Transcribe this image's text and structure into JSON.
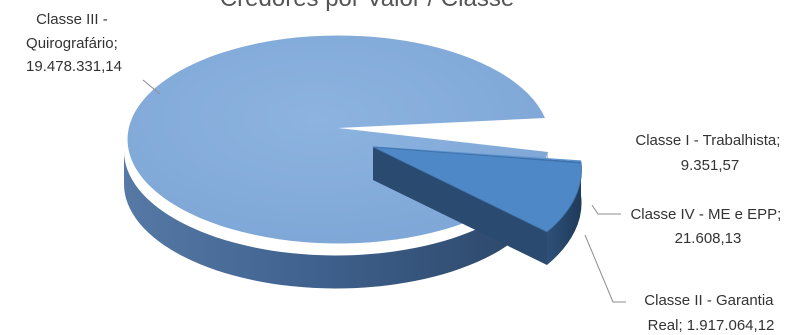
{
  "chart_data": {
    "type": "pie",
    "title": "Credores por Valor / Classe",
    "style": "3d-exploded",
    "slices": [
      {
        "category": "Classe I - Trabalhista",
        "value": 9351.57,
        "value_label": "9.351,57",
        "color": "#4f81bd"
      },
      {
        "category": "Classe IV - ME e EPP",
        "value": 21608.13,
        "value_label": "21.608,13",
        "color": "#4f81bd"
      },
      {
        "category": "Classe II - Garantia Real",
        "value": 1917064.12,
        "value_label": "1.917.064,12",
        "color": "#4a86c8"
      },
      {
        "category": "Classe III - Quirografário",
        "value": 19478331.14,
        "value_label": "19.478.331,14",
        "color": "#84abd8"
      }
    ],
    "labels": {
      "class3": {
        "line1": "Classe III -",
        "line2": "Quirografário;",
        "line3": "19.478.331,14"
      },
      "class1": {
        "line1": "Classe I - Trabalhista;",
        "line2": "9.351,57"
      },
      "class4": {
        "line1": "Classe IV - ME e EPP;",
        "line2": "21.608,13"
      },
      "class2": {
        "line1": "Classe II - Garantia",
        "line2": "Real;  1.917.064,12"
      }
    },
    "legend": "none"
  }
}
